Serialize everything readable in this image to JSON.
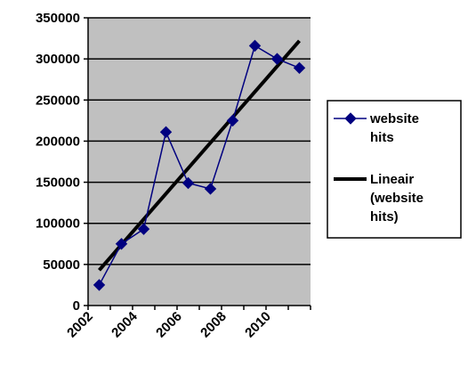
{
  "chart_data": {
    "type": "line",
    "x": [
      2002.5,
      2003.5,
      2004.5,
      2005.5,
      2006.5,
      2007.5,
      2008.5,
      2009.5,
      2010.5,
      2011.5
    ],
    "series": [
      {
        "name": "website hits",
        "values": [
          25000,
          75000,
          93000,
          211000,
          149000,
          142000,
          225000,
          316000,
          300000,
          289000
        ],
        "color": "#000080",
        "marker": "diamond"
      }
    ],
    "trendline": {
      "name": "Lineair (website hits)",
      "kind": "linear",
      "y_start": 43000,
      "y_end": 322000,
      "color": "#000000"
    },
    "x_ticks": [
      "2002",
      "2004",
      "2006",
      "2008",
      "2010"
    ],
    "x_tick_values": [
      2002,
      2004,
      2006,
      2008,
      2010
    ],
    "xlim": [
      2002,
      2012
    ],
    "y_ticks": [
      "0",
      "50000",
      "100000",
      "150000",
      "200000",
      "250000",
      "300000",
      "350000"
    ],
    "y_tick_values": [
      0,
      50000,
      100000,
      150000,
      200000,
      250000,
      300000,
      350000
    ],
    "ylim": [
      0,
      350000
    ],
    "grid": true,
    "plot_background": "#c0c0c0",
    "legend_position": "right",
    "legend": {
      "series_label_lines": [
        "website",
        "hits"
      ],
      "trend_label_lines": [
        "Lineair",
        "(website",
        "hits)"
      ]
    }
  }
}
